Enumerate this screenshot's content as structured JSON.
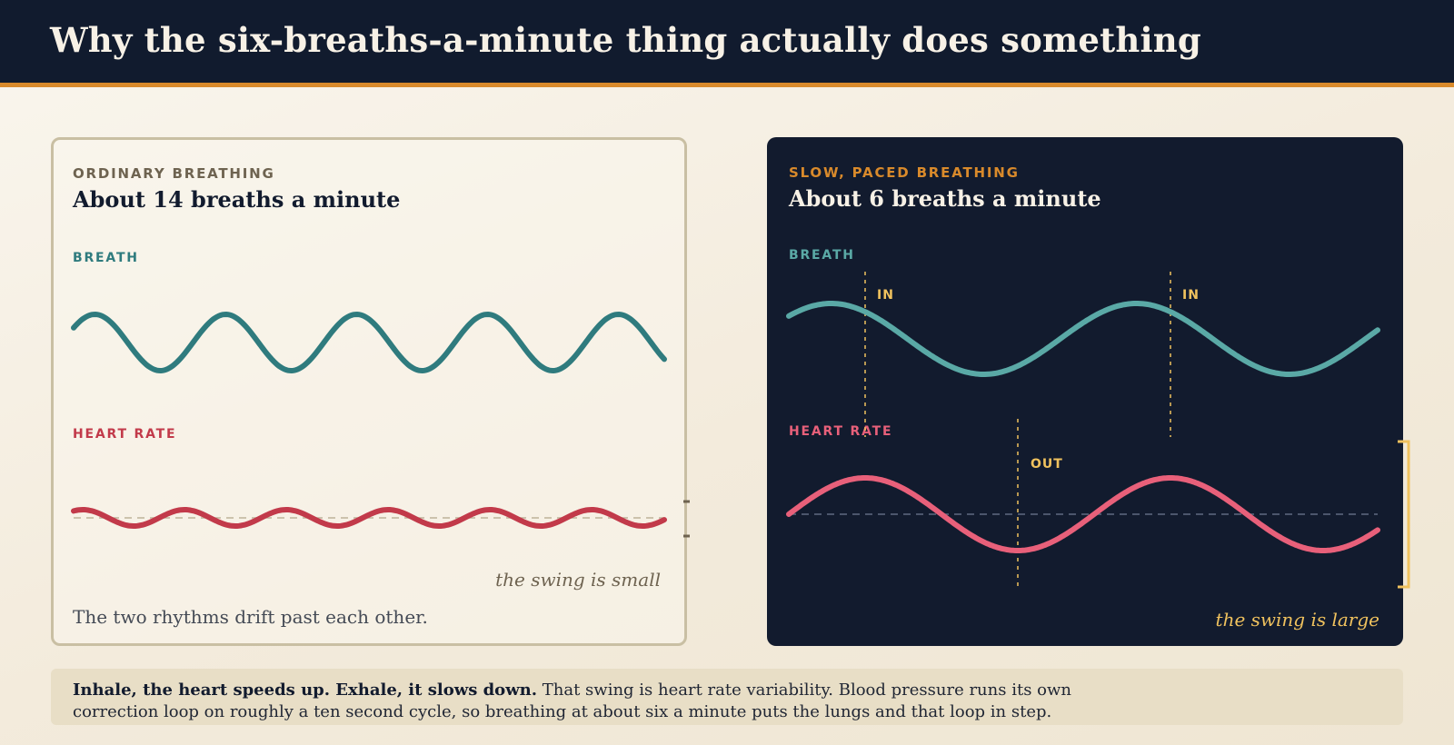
{
  "header": {
    "title": "Why the six-breaths-a-minute thing actually does something"
  },
  "left_panel": {
    "kicker": "ORDINARY BREATHING",
    "title": "About 14 breaths a minute",
    "breath_label": "BREATH",
    "heart_label": "HEART RATE",
    "swing_note": "the swing is small",
    "description": "The two rhythms drift past each other."
  },
  "right_panel": {
    "kicker": "SLOW, PACED BREATHING",
    "title": "About 6 breaths a minute",
    "breath_label": "BREATH",
    "heart_label": "HEART RATE",
    "marker_in_1": "IN",
    "marker_in_2": "IN",
    "marker_out": "OUT",
    "swing_note": "the swing is large"
  },
  "footer": {
    "lead": "Inhale, the heart speeds up. Exhale, it slows down.",
    "body_line1": " That swing is heart rate variability. Blood pressure runs its own",
    "body_line2": "correction loop on roughly a ten second cycle, so breathing at about six a minute puts the lungs and that loop in step."
  },
  "colors": {
    "navy": "#121b2e",
    "accent_orange": "#d98a2b",
    "breath_teal_light": "#2f7b7e",
    "breath_teal_dark": "#5aa9a6",
    "heart_red_light": "#c23a4a",
    "heart_red_dark": "#e8607a",
    "marker_gold": "#f0c25e"
  }
}
